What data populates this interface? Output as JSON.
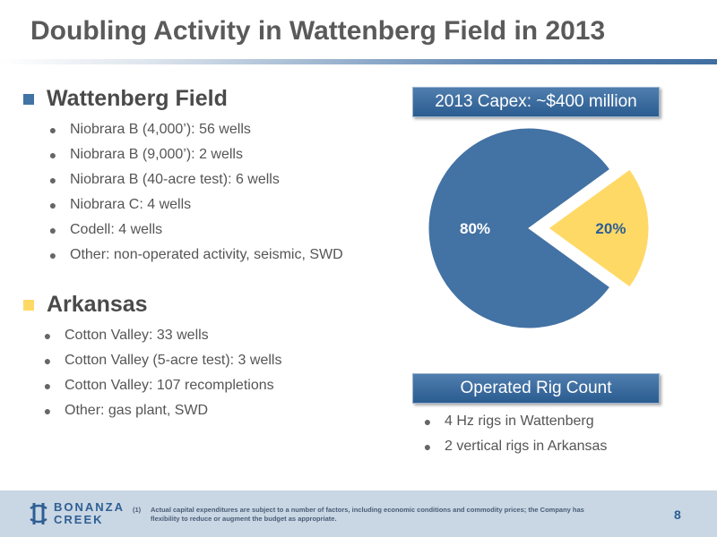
{
  "title": "Doubling Activity in Wattenberg Field in 2013",
  "colors": {
    "blue": "#4372a4",
    "yellow": "#ffd966",
    "title": "#5a5a5a",
    "accent": "#2e5f93"
  },
  "sections": [
    {
      "heading": "Wattenberg Field",
      "bullets": [
        "Niobrara B (4,000’): 56 wells",
        "Niobrara B (9,000’): 2 wells",
        "Niobrara B (40-acre test): 6 wells",
        "Niobrara C: 4 wells",
        "Codell: 4 wells",
        "Other: non-operated activity, seismic, SWD"
      ]
    },
    {
      "heading": "Arkansas",
      "bullets": [
        "Cotton Valley: 33 wells",
        "Cotton Valley (5-acre test): 3 wells",
        "Cotton Valley: 107 recompletions",
        "Other: gas plant, SWD"
      ]
    }
  ],
  "capex_box": "2013 Capex: ~$400 million",
  "rig_box": "Operated Rig Count",
  "rig_bullets": [
    "4 Hz rigs in Wattenberg",
    "2 vertical rigs in Arkansas"
  ],
  "chart_data": {
    "type": "pie",
    "values": [
      80,
      20
    ],
    "labels": [
      "80%",
      "20%"
    ],
    "colors": [
      "#4372a4",
      "#ffd966"
    ],
    "exploded": 1
  },
  "footer": {
    "logo_line1": "BONANZA",
    "logo_line2": "CREEK",
    "footnote_num": "(1)",
    "footnote_text": "Actual capital expenditures are subject to a number of factors, including economic conditions and commodity prices; the Company has flexibility to reduce or augment the budget as appropriate.",
    "page_number": "8"
  }
}
